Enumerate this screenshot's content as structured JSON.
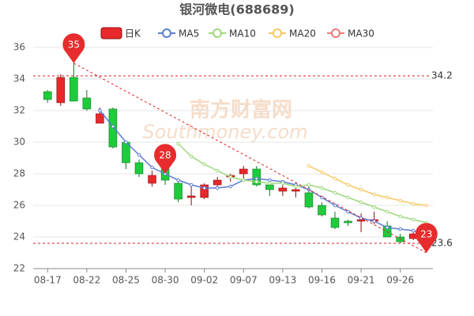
{
  "chart_data": {
    "type": "candlestick",
    "title": "银河微电(688689)",
    "watermark": [
      "南方财富网",
      "Southmoney.com"
    ],
    "categories": [
      "08-17",
      null,
      null,
      "08-22",
      null,
      null,
      "08-25",
      null,
      null,
      "08-30",
      null,
      null,
      "09-02",
      null,
      null,
      "09-07",
      null,
      null,
      "09-13",
      null,
      null,
      "09-16",
      null,
      null,
      "09-21",
      null,
      null,
      "09-26",
      null,
      null
    ],
    "candles": {
      "name": "日K",
      "up_color": "#e8282b",
      "down_color": "#1ecb3c",
      "open": [
        33.2,
        32.5,
        34.1,
        32.8,
        31.2,
        32.1,
        30.0,
        28.7,
        27.4,
        28.3,
        27.4,
        26.5,
        26.5,
        27.3,
        27.8,
        28.0,
        28.3,
        27.3,
        26.9,
        26.9,
        26.8,
        26.0,
        25.2,
        25.0,
        25.0,
        25.0,
        24.7,
        24.0,
        23.9,
        24.0
      ],
      "close": [
        32.7,
        34.1,
        32.6,
        32.1,
        31.8,
        29.7,
        28.7,
        28.0,
        27.9,
        27.6,
        26.4,
        26.6,
        27.3,
        27.6,
        27.9,
        28.3,
        27.3,
        27.0,
        27.1,
        27.0,
        25.9,
        25.4,
        24.6,
        24.9,
        25.1,
        25.1,
        24.0,
        23.7,
        24.2,
        23.7
      ],
      "high": [
        33.3,
        34.3,
        35.0,
        33.3,
        32.2,
        32.2,
        30.0,
        28.9,
        28.2,
        28.5,
        27.6,
        27.2,
        27.4,
        27.8,
        28.0,
        28.5,
        28.5,
        27.4,
        27.5,
        27.3,
        27.3,
        26.2,
        25.6,
        25.1,
        25.5,
        25.6,
        25.0,
        24.2,
        24.3,
        24.1
      ],
      "low": [
        32.5,
        32.3,
        32.6,
        32.0,
        31.2,
        29.6,
        28.3,
        27.8,
        27.2,
        27.3,
        26.2,
        26.0,
        26.4,
        27.0,
        27.5,
        27.6,
        27.2,
        26.6,
        26.6,
        26.5,
        25.8,
        25.3,
        24.5,
        24.7,
        24.3,
        24.8,
        24.0,
        23.6,
        23.8,
        23.6
      ]
    },
    "series": [
      {
        "name": "MA5",
        "color": "#5b7bd5",
        "values": [
          null,
          null,
          null,
          null,
          32.0,
          31.0,
          30.0,
          29.2,
          28.4,
          28.0,
          27.6,
          27.3,
          27.1,
          27.1,
          27.2,
          27.6,
          27.7,
          27.6,
          27.5,
          27.3,
          27.0,
          26.5,
          26.0,
          25.6,
          25.2,
          25.0,
          24.6,
          24.5,
          24.4,
          24.1
        ]
      },
      {
        "name": "MA10",
        "color": "#9ed87c",
        "values": [
          null,
          null,
          null,
          null,
          null,
          null,
          null,
          null,
          null,
          null,
          29.9,
          29.1,
          28.6,
          28.2,
          27.8,
          27.6,
          27.5,
          27.4,
          27.4,
          27.2,
          27.3,
          27.1,
          26.8,
          26.5,
          26.2,
          25.9,
          25.6,
          25.3,
          25.1,
          24.9
        ]
      },
      {
        "name": "MA20",
        "color": "#f5c862",
        "values": [
          null,
          null,
          null,
          null,
          null,
          null,
          null,
          null,
          null,
          null,
          null,
          null,
          null,
          null,
          null,
          null,
          null,
          null,
          null,
          null,
          28.5,
          28.1,
          27.7,
          27.3,
          27.0,
          26.7,
          26.5,
          26.3,
          26.1,
          26.0
        ]
      },
      {
        "name": "MA30",
        "color": "#ef7a7a",
        "values": [
          null,
          null,
          null,
          null,
          null,
          null,
          null,
          null,
          null,
          null,
          null,
          null,
          null,
          null,
          null,
          null,
          null,
          null,
          null,
          null,
          null,
          null,
          null,
          null,
          null,
          null,
          null,
          null,
          null,
          null
        ]
      }
    ],
    "pin_color": "#e62c2c",
    "pin_values": [
      null,
      null,
      35,
      null,
      null,
      null,
      null,
      null,
      null,
      28,
      null,
      null,
      null,
      null,
      null,
      null,
      null,
      null,
      null,
      null,
      null,
      null,
      null,
      null,
      null,
      null,
      null,
      null,
      null,
      23
    ],
    "hlines": [
      34.2,
      23.6
    ],
    "ylim": [
      22,
      36
    ],
    "yticks": [
      22,
      24,
      26,
      28,
      30,
      32,
      34,
      36
    ],
    "grid": true
  }
}
